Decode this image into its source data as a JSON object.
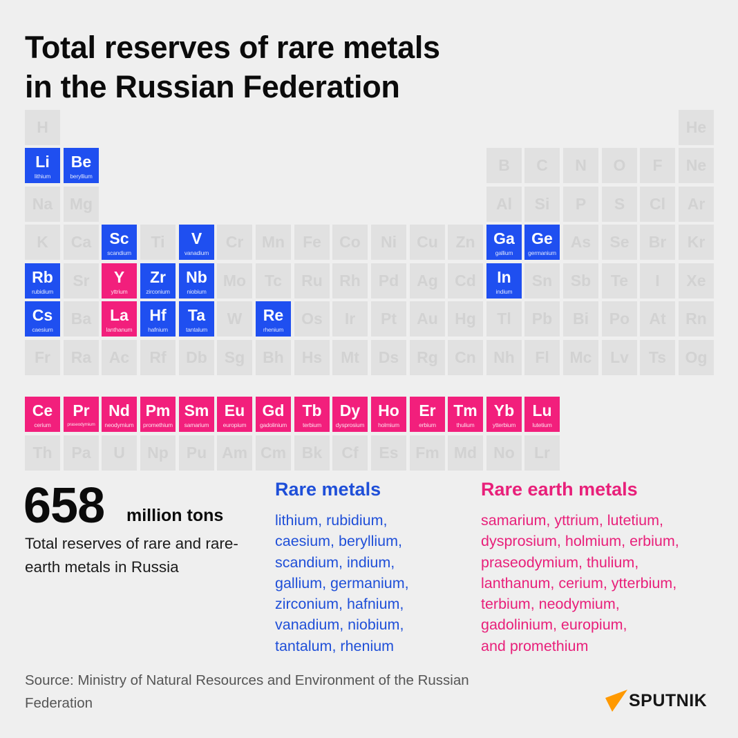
{
  "title": {
    "line1": "Total reserves of rare metals",
    "line2": "in the Russian Federation"
  },
  "colors": {
    "rare_metal": "#1f4ff0",
    "rare_earth": "#f21f7c",
    "inactive": "#e1e1e1",
    "logo_accent": "#ff9900"
  },
  "periodic_table": {
    "rows": [
      [
        [
          "H",
          ""
        ],
        null,
        null,
        null,
        null,
        null,
        null,
        null,
        null,
        null,
        null,
        null,
        null,
        null,
        null,
        null,
        null,
        [
          "He",
          ""
        ]
      ],
      [
        [
          "Li",
          "lithium",
          "rare"
        ],
        [
          "Be",
          "beryllium",
          "rare"
        ],
        null,
        null,
        null,
        null,
        null,
        null,
        null,
        null,
        null,
        null,
        [
          "B",
          ""
        ],
        [
          "C",
          ""
        ],
        [
          "N",
          ""
        ],
        [
          "O",
          ""
        ],
        [
          "F",
          ""
        ],
        [
          "Ne",
          ""
        ]
      ],
      [
        [
          "Na",
          ""
        ],
        [
          "Mg",
          ""
        ],
        null,
        null,
        null,
        null,
        null,
        null,
        null,
        null,
        null,
        null,
        [
          "Al",
          ""
        ],
        [
          "Si",
          ""
        ],
        [
          "P",
          ""
        ],
        [
          "S",
          ""
        ],
        [
          "Cl",
          ""
        ],
        [
          "Ar",
          ""
        ]
      ],
      [
        [
          "K",
          ""
        ],
        [
          "Ca",
          ""
        ],
        [
          "Sc",
          "scandium",
          "rare"
        ],
        [
          "Ti",
          ""
        ],
        [
          "V",
          "vanadium",
          "rare"
        ],
        [
          "Cr",
          ""
        ],
        [
          "Mn",
          ""
        ],
        [
          "Fe",
          ""
        ],
        [
          "Co",
          ""
        ],
        [
          "Ni",
          ""
        ],
        [
          "Cu",
          ""
        ],
        [
          "Zn",
          ""
        ],
        [
          "Ga",
          "gallium",
          "rare"
        ],
        [
          "Ge",
          "germanium",
          "rare"
        ],
        [
          "As",
          ""
        ],
        [
          "Se",
          ""
        ],
        [
          "Br",
          ""
        ],
        [
          "Kr",
          ""
        ]
      ],
      [
        [
          "Rb",
          "rubidium",
          "rare"
        ],
        [
          "Sr",
          ""
        ],
        [
          "Y",
          "yttrium",
          "earth"
        ],
        [
          "Zr",
          "zirconium",
          "rare"
        ],
        [
          "Nb",
          "niobium",
          "rare"
        ],
        [
          "Mo",
          ""
        ],
        [
          "Tc",
          ""
        ],
        [
          "Ru",
          ""
        ],
        [
          "Rh",
          ""
        ],
        [
          "Pd",
          ""
        ],
        [
          "Ag",
          ""
        ],
        [
          "Cd",
          ""
        ],
        [
          "In",
          "indium",
          "rare"
        ],
        [
          "Sn",
          ""
        ],
        [
          "Sb",
          ""
        ],
        [
          "Te",
          ""
        ],
        [
          "I",
          ""
        ],
        [
          "Xe",
          ""
        ]
      ],
      [
        [
          "Cs",
          "caesium",
          "rare"
        ],
        [
          "Ba",
          ""
        ],
        [
          "La",
          "lanthanum",
          "earth"
        ],
        [
          "Hf",
          "hafnium",
          "rare"
        ],
        [
          "Ta",
          "tantalum",
          "rare"
        ],
        [
          "W",
          ""
        ],
        [
          "Re",
          "rhenium",
          "rare"
        ],
        [
          "Os",
          ""
        ],
        [
          "Ir",
          ""
        ],
        [
          "Pt",
          ""
        ],
        [
          "Au",
          ""
        ],
        [
          "Hg",
          ""
        ],
        [
          "Tl",
          ""
        ],
        [
          "Pb",
          ""
        ],
        [
          "Bi",
          ""
        ],
        [
          "Po",
          ""
        ],
        [
          "At",
          ""
        ],
        [
          "Rn",
          ""
        ]
      ],
      [
        [
          "Fr",
          ""
        ],
        [
          "Ra",
          ""
        ],
        [
          "Ac",
          ""
        ],
        [
          "Rf",
          ""
        ],
        [
          "Db",
          ""
        ],
        [
          "Sg",
          ""
        ],
        [
          "Bh",
          ""
        ],
        [
          "Hs",
          ""
        ],
        [
          "Mt",
          ""
        ],
        [
          "Ds",
          ""
        ],
        [
          "Rg",
          ""
        ],
        [
          "Cn",
          ""
        ],
        [
          "Nh",
          ""
        ],
        [
          "Fl",
          ""
        ],
        [
          "Mc",
          ""
        ],
        [
          "Lv",
          ""
        ],
        [
          "Ts",
          ""
        ],
        [
          "Og",
          ""
        ]
      ]
    ],
    "lanthanides": [
      [
        "Ce",
        "cerium",
        "earth"
      ],
      [
        "Pr",
        "praseodymium",
        "earth"
      ],
      [
        "Nd",
        "neodymium",
        "earth"
      ],
      [
        "Pm",
        "promethium",
        "earth"
      ],
      [
        "Sm",
        "samarium",
        "earth"
      ],
      [
        "Eu",
        "europium",
        "earth"
      ],
      [
        "Gd",
        "gadolinium",
        "earth"
      ],
      [
        "Tb",
        "terbium",
        "earth"
      ],
      [
        "Dy",
        "dysprosium",
        "earth"
      ],
      [
        "Ho",
        "holmium",
        "earth"
      ],
      [
        "Er",
        "erbium",
        "earth"
      ],
      [
        "Tm",
        "thulium",
        "earth"
      ],
      [
        "Yb",
        "ytterbium",
        "earth"
      ],
      [
        "Lu",
        "lutetium",
        "earth"
      ]
    ],
    "actinides": [
      [
        "Th",
        ""
      ],
      [
        "Pa",
        ""
      ],
      [
        "U",
        ""
      ],
      [
        "Np",
        ""
      ],
      [
        "Pu",
        ""
      ],
      [
        "Am",
        ""
      ],
      [
        "Cm",
        ""
      ],
      [
        "Bk",
        ""
      ],
      [
        "Cf",
        ""
      ],
      [
        "Es",
        ""
      ],
      [
        "Fm",
        ""
      ],
      [
        "Md",
        ""
      ],
      [
        "No",
        ""
      ],
      [
        "Lr",
        ""
      ]
    ]
  },
  "summary": {
    "value": "658",
    "unit": "million tons",
    "description": "Total reserves of rare and rare-earth metals in Russia"
  },
  "rare_metals": {
    "heading": "Rare metals",
    "lines": [
      "lithium, rubidium,",
      "caesium, beryllium,",
      "scandium, indium,",
      "gallium, germanium,",
      "zirconium, hafnium,",
      "vanadium, niobium,",
      "tantalum, rhenium"
    ]
  },
  "rare_earth_metals": {
    "heading": "Rare earth metals",
    "lines": [
      "samarium, yttrium, lutetium,",
      "dysprosium, holmium, erbium,",
      "praseodymium, thulium,",
      "lanthanum, cerium, ytterbium,",
      "terbium, neodymium,",
      "gadolinium, europium,",
      "and promethium"
    ]
  },
  "source": {
    "line1": "Source: Ministry of Natural Resources and Environment of the Russian",
    "line2": "Federation"
  },
  "logo": {
    "text": "SPUTNIK",
    "icon": "sputnik-triangle-icon"
  }
}
